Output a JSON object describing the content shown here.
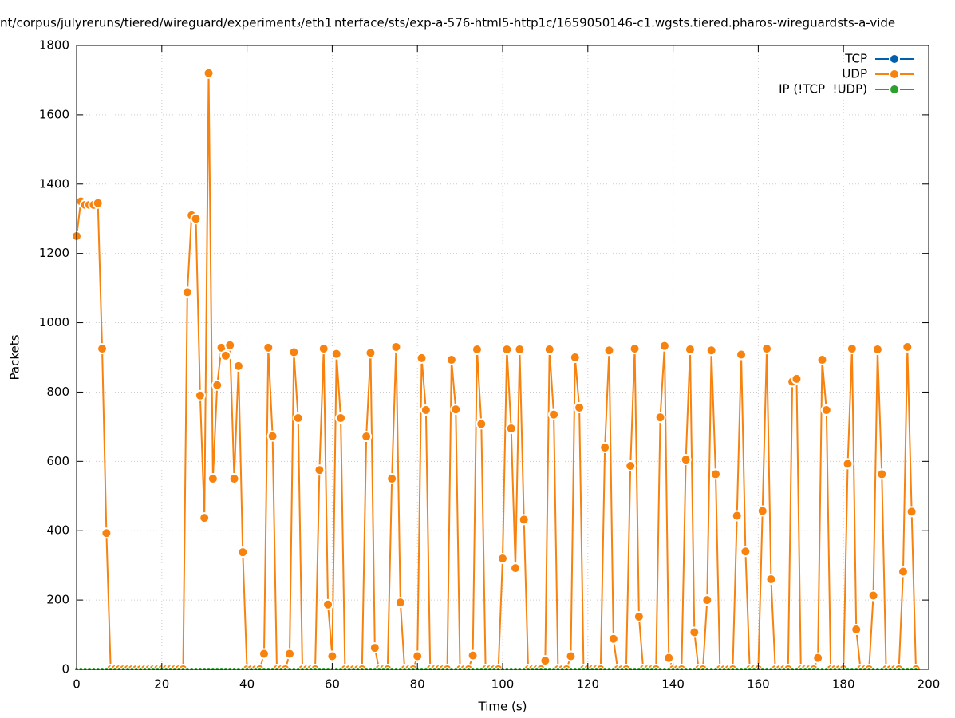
{
  "chart_data": {
    "type": "line",
    "title": "nt/corpus/julyreruns/tiered/wireguard/experiment₃/eth1ᵢnterface/sts/exp-a-576-html5-http1c/1659050146-c1.wgsts.tiered.pharos-wireguardsts-a-vide",
    "xlabel": "Time (s)",
    "ylabel": "Packets",
    "xlim": [
      0,
      200
    ],
    "xticks": [
      0,
      20,
      40,
      60,
      80,
      100,
      120,
      140,
      160,
      180,
      200
    ],
    "ylim": [
      0,
      1800
    ],
    "yticks": [
      0,
      200,
      400,
      600,
      800,
      1000,
      1200,
      1400,
      1600,
      1800
    ],
    "grid": true,
    "legend": "top right",
    "x": [
      0,
      1,
      2,
      3,
      4,
      5,
      6,
      7,
      8,
      9,
      10,
      11,
      12,
      13,
      14,
      15,
      16,
      17,
      18,
      19,
      20,
      21,
      22,
      23,
      24,
      25,
      26,
      27,
      28,
      29,
      30,
      31,
      32,
      33,
      34,
      35,
      36,
      37,
      38,
      39,
      40,
      41,
      42,
      43,
      44,
      45,
      46,
      47,
      48,
      49,
      50,
      51,
      52,
      53,
      54,
      55,
      56,
      57,
      58,
      59,
      60,
      61,
      62,
      63,
      64,
      65,
      66,
      67,
      68,
      69,
      70,
      71,
      72,
      73,
      74,
      75,
      76,
      77,
      78,
      79,
      80,
      81,
      82,
      83,
      84,
      85,
      86,
      87,
      88,
      89,
      90,
      91,
      92,
      93,
      94,
      95,
      96,
      97,
      98,
      99,
      100,
      101,
      102,
      103,
      104,
      105,
      106,
      107,
      108,
      109,
      110,
      111,
      112,
      113,
      114,
      115,
      116,
      117,
      118,
      119,
      120,
      121,
      122,
      123,
      124,
      125,
      126,
      127,
      128,
      129,
      130,
      131,
      132,
      133,
      134,
      135,
      136,
      137,
      138,
      139,
      140,
      141,
      142,
      143,
      144,
      145,
      146,
      147,
      148,
      149,
      150,
      151,
      152,
      153,
      154,
      155,
      156,
      157,
      158,
      159,
      160,
      161,
      162,
      163,
      164,
      165,
      166,
      167,
      168,
      169,
      170,
      171,
      172,
      173,
      174,
      175,
      176,
      177,
      178,
      179,
      180,
      181,
      182,
      183,
      184,
      185,
      186,
      187,
      188,
      189,
      190,
      191,
      192,
      193,
      194,
      195,
      196,
      197
    ],
    "series": [
      {
        "name": "TCP",
        "color": "#0060ad",
        "values": [
          0,
          0,
          0,
          0,
          0,
          0,
          0,
          0,
          0,
          0,
          0,
          0,
          0,
          0,
          0,
          0,
          0,
          0,
          0,
          0,
          0,
          0,
          0,
          0,
          0,
          0,
          0,
          0,
          0,
          0,
          0,
          0,
          0,
          0,
          0,
          0,
          0,
          0,
          0,
          0,
          0,
          0,
          0,
          0,
          0,
          0,
          0,
          0,
          0,
          0,
          0,
          0,
          0,
          0,
          0,
          0,
          0,
          0,
          0,
          0,
          0,
          0,
          0,
          0,
          0,
          0,
          0,
          0,
          0,
          0,
          0,
          0,
          0,
          0,
          0,
          0,
          0,
          0,
          0,
          0,
          0,
          0,
          0,
          0,
          0,
          0,
          0,
          0,
          0,
          0,
          0,
          0,
          0,
          0,
          0,
          0,
          0,
          0,
          0,
          0,
          0,
          0,
          0,
          0,
          0,
          0,
          0,
          0,
          0,
          0,
          0,
          0,
          0,
          0,
          0,
          0,
          0,
          0,
          0,
          0,
          0,
          0,
          0,
          0,
          0,
          0,
          0,
          0,
          0,
          0,
          0,
          0,
          0,
          0,
          0,
          0,
          0,
          0,
          0,
          0,
          0,
          0,
          0,
          0,
          0,
          0,
          0,
          0,
          0,
          0,
          0,
          0,
          0,
          0,
          0,
          0,
          0,
          0,
          0,
          0,
          0,
          0,
          0,
          0,
          0,
          0,
          0,
          0,
          0,
          0,
          0,
          0,
          0,
          0,
          0,
          0,
          0,
          0,
          0,
          0,
          0,
          0,
          0,
          0,
          0,
          0,
          0,
          0,
          0,
          0,
          0,
          0,
          0,
          0,
          0,
          0,
          0,
          0
        ]
      },
      {
        "name": "UDP",
        "color": "#f7820e",
        "values": [
          1250,
          1350,
          1340,
          1340,
          1340,
          1345,
          925,
          393,
          0,
          0,
          0,
          0,
          0,
          0,
          0,
          0,
          0,
          0,
          0,
          0,
          0,
          0,
          0,
          0,
          0,
          0,
          1088,
          1310,
          1300,
          790,
          437,
          1720,
          550,
          820,
          928,
          905,
          935,
          550,
          875,
          338,
          0,
          0,
          0,
          0,
          45,
          928,
          673,
          0,
          0,
          0,
          45,
          915,
          725,
          0,
          0,
          0,
          0,
          575,
          925,
          187,
          38,
          910,
          725,
          0,
          0,
          0,
          0,
          0,
          672,
          913,
          62,
          0,
          0,
          0,
          550,
          930,
          193,
          0,
          0,
          0,
          38,
          898,
          748,
          0,
          0,
          0,
          0,
          0,
          893,
          750,
          0,
          0,
          0,
          40,
          923,
          708,
          0,
          0,
          0,
          0,
          320,
          923,
          695,
          292,
          923,
          432,
          0,
          0,
          0,
          0,
          25,
          923,
          735,
          0,
          0,
          0,
          38,
          900,
          755,
          0,
          0,
          0,
          0,
          0,
          640,
          920,
          88,
          0,
          0,
          0,
          587,
          925,
          152,
          0,
          0,
          0,
          0,
          727,
          933,
          33,
          0,
          0,
          0,
          605,
          923,
          107,
          0,
          0,
          200,
          920,
          563,
          0,
          0,
          0,
          0,
          443,
          908,
          340,
          0,
          0,
          0,
          457,
          925,
          260,
          0,
          0,
          0,
          0,
          830,
          838,
          0,
          0,
          0,
          0,
          33,
          893,
          748,
          0,
          0,
          0,
          0,
          593,
          925,
          115,
          0,
          0,
          0,
          213,
          923,
          563,
          0,
          0,
          0,
          0,
          282,
          930,
          455,
          0
        ]
      },
      {
        "name": "IP (!TCP  !UDP)",
        "color": "#2ca02c",
        "values": [
          0,
          0,
          0,
          0,
          0,
          0,
          0,
          0,
          0,
          0,
          0,
          0,
          0,
          0,
          0,
          0,
          0,
          0,
          0,
          0,
          0,
          0,
          0,
          0,
          0,
          0,
          0,
          0,
          0,
          0,
          0,
          0,
          0,
          0,
          0,
          0,
          0,
          0,
          0,
          0,
          0,
          0,
          0,
          0,
          0,
          0,
          0,
          0,
          0,
          0,
          0,
          0,
          0,
          0,
          0,
          0,
          0,
          0,
          0,
          0,
          0,
          0,
          0,
          0,
          0,
          0,
          0,
          0,
          0,
          0,
          0,
          0,
          0,
          0,
          0,
          0,
          0,
          0,
          0,
          0,
          0,
          0,
          0,
          0,
          0,
          0,
          0,
          0,
          0,
          0,
          0,
          0,
          0,
          0,
          0,
          0,
          0,
          0,
          0,
          0,
          0,
          0,
          0,
          0,
          0,
          0,
          0,
          0,
          0,
          0,
          0,
          0,
          0,
          0,
          0,
          0,
          0,
          0,
          0,
          0,
          0,
          0,
          0,
          0,
          0,
          0,
          0,
          0,
          0,
          0,
          0,
          0,
          0,
          0,
          0,
          0,
          0,
          0,
          0,
          0,
          0,
          0,
          0,
          0,
          0,
          0,
          0,
          0,
          0,
          0,
          0,
          0,
          0,
          0,
          0,
          0,
          0,
          0,
          0,
          0,
          0,
          0,
          0,
          0,
          0,
          0,
          0,
          0,
          0,
          0,
          0,
          0,
          0,
          0,
          0,
          0,
          0,
          0,
          0,
          0,
          0,
          0,
          0,
          0,
          0,
          0,
          0,
          0,
          0,
          0,
          0,
          0,
          0,
          0,
          0,
          0,
          0,
          0
        ]
      }
    ]
  }
}
